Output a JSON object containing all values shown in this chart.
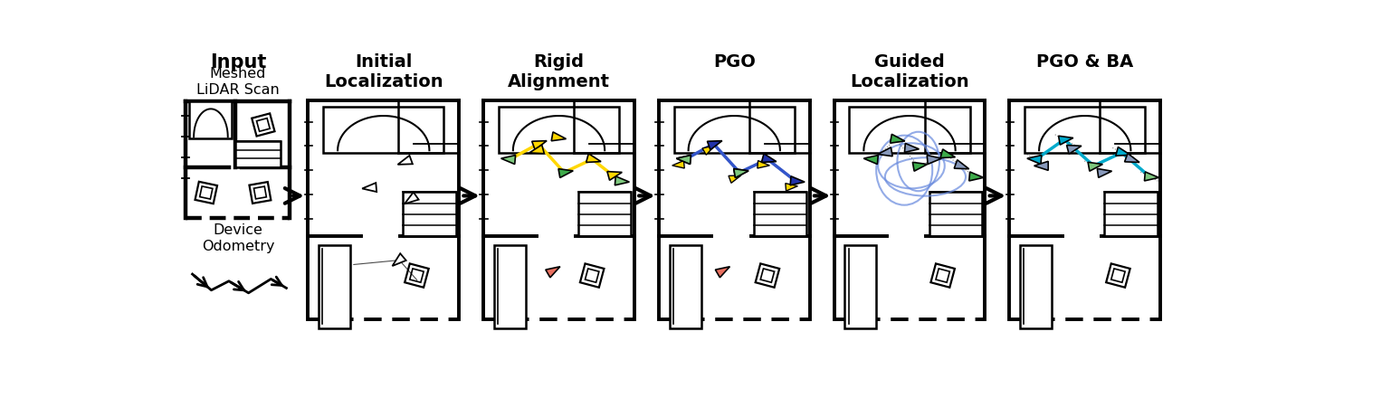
{
  "bg_color": "#ffffff",
  "stage_labels": [
    "Initial\nLocalization",
    "Rigid\nAlignment",
    "PGO",
    "Guided\nLocalization",
    "PGO & BA"
  ],
  "input_label_top": "Input",
  "input_label_mid": "Meshed\nLiDAR Scan",
  "input_label_bot": "Device\nOdometry",
  "yellow": "#FFD700",
  "green": "#3daa4a",
  "light_green": "#7ec87e",
  "salmon": "#e87060",
  "dark_blue": "#2233aa",
  "blue_path": "#3355cc",
  "cyan": "#00aacc",
  "gray_tri": "#8899bb",
  "loop_blue": "#6688dd",
  "label_fontsize": 14
}
